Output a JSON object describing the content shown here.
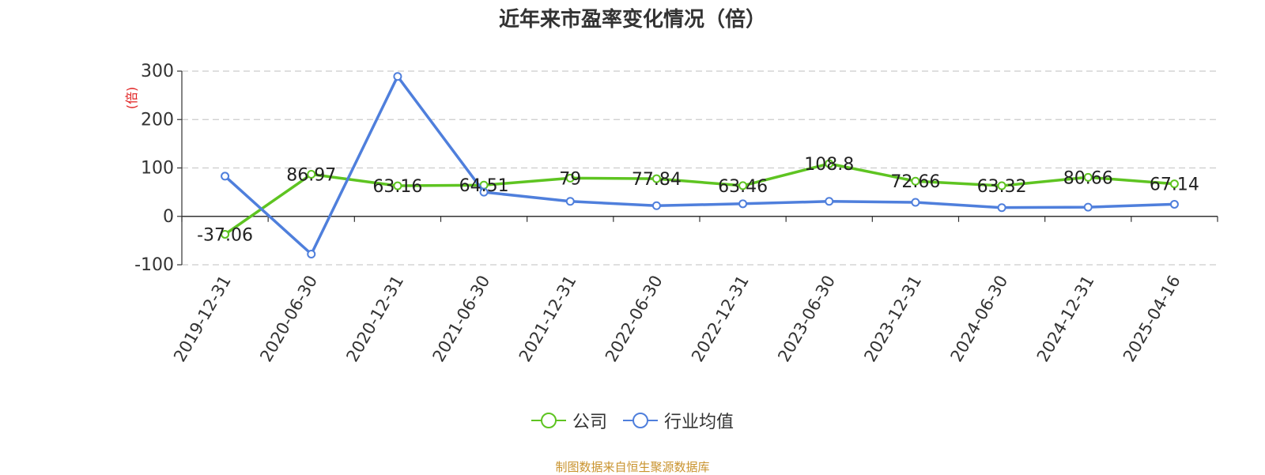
{
  "chart_data": {
    "type": "line",
    "title": "近年来市盈率变化情况（倍）",
    "ylabel": "(倍)",
    "ylim": [
      -100,
      300
    ],
    "yticks": [
      300,
      200,
      100,
      0,
      -100
    ],
    "grid": true,
    "legend_position": "bottom",
    "categories": [
      "2019-12-31",
      "2020-06-30",
      "2020-12-31",
      "2021-06-30",
      "2021-12-31",
      "2022-06-30",
      "2022-12-31",
      "2023-06-30",
      "2023-12-31",
      "2024-06-30",
      "2024-12-31",
      "2025-04-16"
    ],
    "series": [
      {
        "name": "公司",
        "color": "#5ec421",
        "values": [
          -37.06,
          86.97,
          63.16,
          64.51,
          79,
          77.84,
          63.46,
          108.8,
          72.66,
          63.32,
          80.66,
          67.14
        ],
        "labels": [
          "-37.06",
          "86.97",
          "63.16",
          "64.51",
          "79",
          "77.84",
          "63.46",
          "108.8",
          "72.66",
          "63.32",
          "80.66",
          "67.14"
        ]
      },
      {
        "name": "行业均值",
        "color": "#4f7fdc",
        "values": [
          83,
          -78,
          289,
          50,
          31,
          22,
          26,
          31,
          29,
          18,
          19,
          25
        ],
        "show_from": 0
      }
    ]
  },
  "footer": {
    "source": "制图数据来自恒生聚源数据库"
  }
}
